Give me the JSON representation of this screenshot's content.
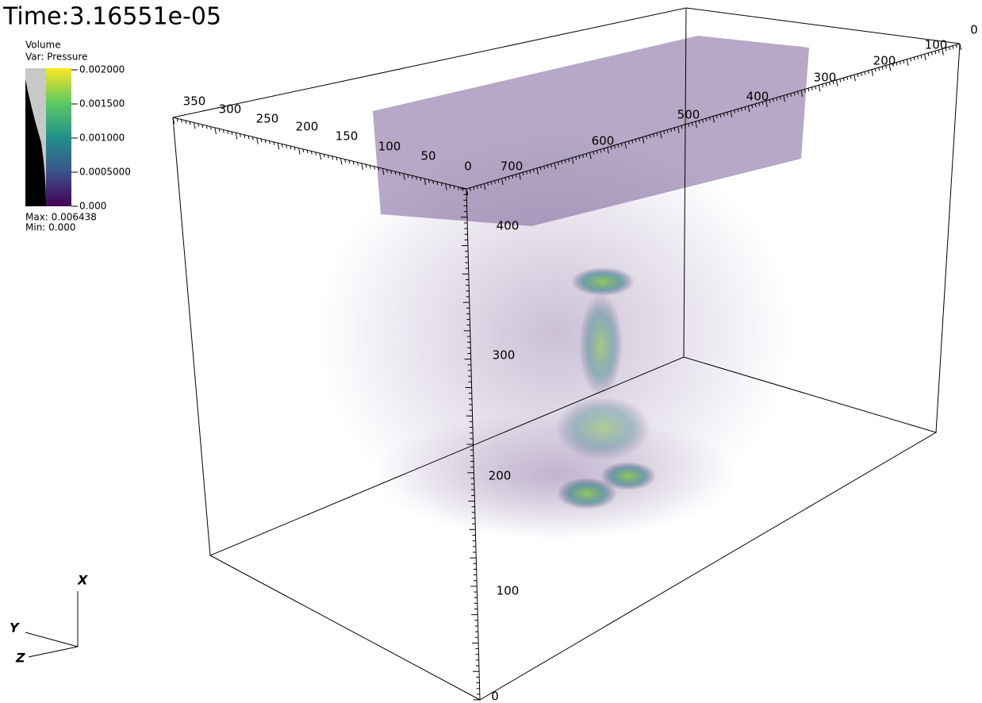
{
  "title": "Time:3.16551e-05",
  "legend": {
    "plot": "Volume",
    "variable": "Var: Pressure",
    "ticks": [
      "0.002000",
      "0.001500",
      "0.001000",
      "0.0005000",
      "0.000"
    ],
    "max": "Max: 0.006438",
    "min": "Min: 0.000"
  },
  "axes": {
    "top_left": [
      "350",
      "300",
      "250",
      "200",
      "150",
      "100",
      "50",
      "0"
    ],
    "top_right": [
      "700",
      "600",
      "500",
      "400",
      "300",
      "200",
      "100",
      "0"
    ],
    "vertical": [
      "400",
      "300",
      "200",
      "100",
      "0"
    ]
  },
  "triad": {
    "x": "X",
    "y": "Y",
    "z": "Z"
  }
}
